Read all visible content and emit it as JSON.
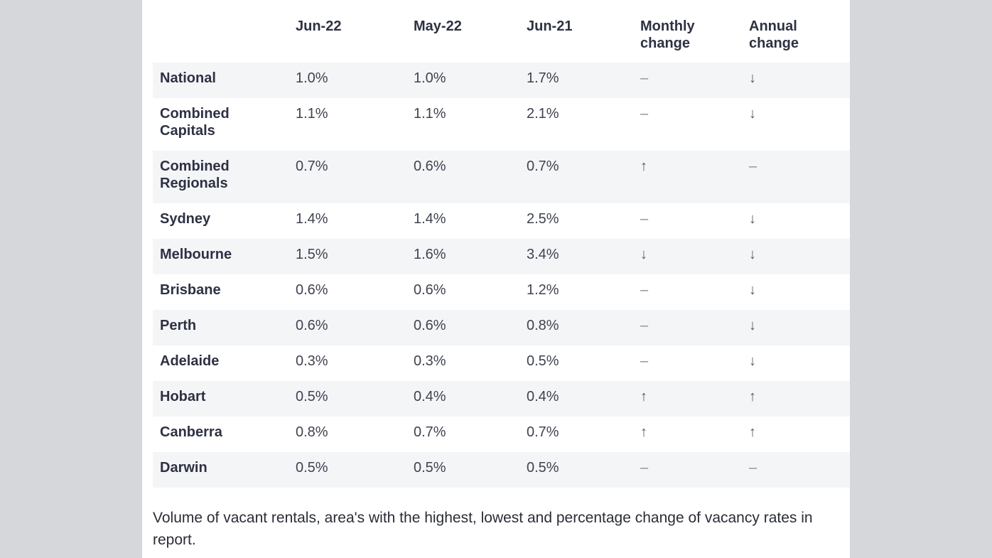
{
  "table": {
    "headers": [
      "",
      "Jun-22",
      "May-22",
      "Jun-21",
      "Monthly\nchange",
      "Annual\nchange"
    ],
    "header_lines": [
      [
        ""
      ],
      [
        "Jun-22"
      ],
      [
        "May-22"
      ],
      [
        "Jun-21"
      ],
      [
        "Monthly",
        "change"
      ],
      [
        "Annual",
        "change"
      ]
    ],
    "rows": [
      {
        "region": "National",
        "jun22": "1.0%",
        "may22": "1.0%",
        "jun21": "1.7%",
        "monthly": "–",
        "annual": "↓"
      },
      {
        "region": "Combined Capitals",
        "jun22": "1.1%",
        "may22": "1.1%",
        "jun21": "2.1%",
        "monthly": "–",
        "annual": "↓"
      },
      {
        "region": "Combined Regionals",
        "jun22": "0.7%",
        "may22": "0.6%",
        "jun21": "0.7%",
        "monthly": "↑",
        "annual": "–"
      },
      {
        "region": "Sydney",
        "jun22": "1.4%",
        "may22": "1.4%",
        "jun21": "2.5%",
        "monthly": "–",
        "annual": "↓"
      },
      {
        "region": "Melbourne",
        "jun22": "1.5%",
        "may22": "1.6%",
        "jun21": "3.4%",
        "monthly": "↓",
        "annual": "↓"
      },
      {
        "region": "Brisbane",
        "jun22": "0.6%",
        "may22": "0.6%",
        "jun21": "1.2%",
        "monthly": "–",
        "annual": "↓"
      },
      {
        "region": "Perth",
        "jun22": "0.6%",
        "may22": "0.6%",
        "jun21": "0.8%",
        "monthly": "–",
        "annual": "↓"
      },
      {
        "region": "Adelaide",
        "jun22": "0.3%",
        "may22": "0.3%",
        "jun21": "0.5%",
        "monthly": "–",
        "annual": "↓"
      },
      {
        "region": "Hobart",
        "jun22": "0.5%",
        "may22": "0.4%",
        "jun21": "0.4%",
        "monthly": "↑",
        "annual": "↑"
      },
      {
        "region": "Canberra",
        "jun22": "0.8%",
        "may22": "0.7%",
        "jun21": "0.7%",
        "monthly": "↑",
        "annual": "↑"
      },
      {
        "region": "Darwin",
        "jun22": "0.5%",
        "may22": "0.5%",
        "jun21": "0.5%",
        "monthly": "–",
        "annual": "–"
      }
    ]
  },
  "caption": "Volume of vacant rentals, area's with the highest, lowest and percentage change of vacancy rates in report."
}
